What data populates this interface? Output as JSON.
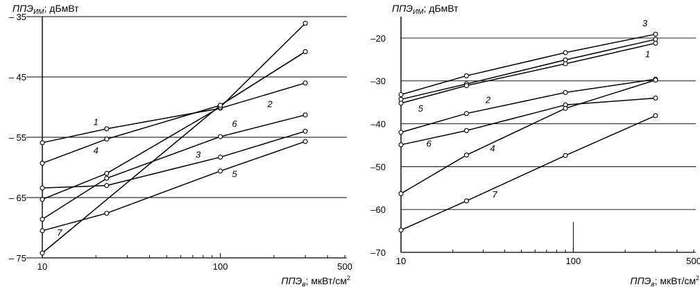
{
  "chart_data": [
    {
      "type": "line",
      "ylabel": "ППЭ",
      "ylabel_sub": "ИМ",
      "ylabel_unit": "; дБмВт",
      "xlabel": "ППЭ",
      "xlabel_sub": "в",
      "xlabel_unit": "; мкВт/см",
      "xlabel_sup": "2",
      "xscale": "log",
      "xlim": [
        10,
        500
      ],
      "ylim": [
        -75,
        -35
      ],
      "xticks": [
        {
          "v": 10,
          "t": "10"
        },
        {
          "v": 100,
          "t": "100"
        },
        {
          "v": 500,
          "t": "500"
        }
      ],
      "yticks": [
        {
          "v": -35,
          "t": "– 35"
        },
        {
          "v": -45,
          "t": "– 45"
        },
        {
          "v": -55,
          "t": "– 55"
        },
        {
          "v": -65,
          "t": "– 65"
        },
        {
          "v": -75,
          "t": "– 75"
        }
      ],
      "grid": "horizontal",
      "series": [
        {
          "label": "1",
          "label_at": [
            20,
            -53
          ],
          "x": [
            10,
            23,
            100,
            300
          ],
          "y": [
            -55.9,
            -53.6,
            -50.2,
            -46.0
          ]
        },
        {
          "label": "2",
          "label_at": [
            190,
            -50
          ],
          "x": [
            10,
            23,
            100,
            300
          ],
          "y": [
            -59.3,
            -55.3,
            -49.7,
            -40.8
          ]
        },
        {
          "label": "3",
          "label_at": [
            75,
            -58.4
          ],
          "x": [
            10,
            23,
            100,
            300
          ],
          "y": [
            -63.4,
            -63.0,
            -58.3,
            -54.0
          ]
        },
        {
          "label": "4",
          "label_at": [
            20,
            -57.7
          ],
          "x": [
            10,
            23,
            100,
            300
          ],
          "y": [
            -65.3,
            -61.0,
            -50.0,
            -36.1
          ]
        },
        {
          "label": "5",
          "label_at": [
            120,
            -61.6
          ],
          "x": [
            10,
            23,
            100,
            300
          ],
          "y": [
            -70.5,
            -67.6,
            -60.6,
            -55.7
          ]
        },
        {
          "label": "6",
          "label_at": [
            120,
            -53.3
          ],
          "x": [
            10,
            23,
            100,
            300
          ],
          "y": [
            -68.6,
            -61.8,
            -54.9,
            -51.3
          ]
        },
        {
          "label": "7",
          "label_at": [
            12.5,
            -71.3
          ],
          "x": [
            10,
            100,
            300
          ],
          "y": [
            -74.2,
            -49.7,
            -40.8
          ]
        }
      ]
    },
    {
      "type": "line",
      "ylabel": "ППЭ",
      "ylabel_sub": "ИМ",
      "ylabel_unit": "; дБмВт",
      "xlabel": "ППЭ",
      "xlabel_sub": "в",
      "xlabel_unit": "; мкВт/см",
      "xlabel_sup": "2",
      "xscale": "log",
      "xlim": [
        10,
        500
      ],
      "ylim": [
        -70,
        -15
      ],
      "xticks": [
        {
          "v": 10,
          "t": "10"
        },
        {
          "v": 100,
          "t": "100"
        },
        {
          "v": 500,
          "t": "500"
        }
      ],
      "yticks": [
        {
          "v": -20,
          "t": "–20"
        },
        {
          "v": -30,
          "t": "–30"
        },
        {
          "v": -40,
          "t": "–40"
        },
        {
          "v": -50,
          "t": "–50"
        },
        {
          "v": -60,
          "t": "–60"
        },
        {
          "v": -70,
          "t": "–70"
        }
      ],
      "grid": "horizontal",
      "series": [
        {
          "label": "3",
          "label_at": [
            260,
            -17.3
          ],
          "x": [
            10,
            24,
            90,
            300
          ],
          "y": [
            -33.2,
            -28.8,
            -23.4,
            -19.1
          ]
        },
        {
          "label": "1",
          "label_at": [
            270,
            -24.5
          ],
          "x": [
            10,
            24,
            90,
            300
          ],
          "y": [
            -34.3,
            -30.7,
            -25.1,
            -20.3
          ]
        },
        {
          "label": "5",
          "label_at": [
            13,
            -37.2
          ],
          "x": [
            10,
            24,
            90,
            300
          ],
          "y": [
            -35.2,
            -31.1,
            -26.0,
            -21.2
          ]
        },
        {
          "label": "2",
          "label_at": [
            32,
            -35.1
          ],
          "x": [
            10,
            24,
            90,
            300
          ],
          "y": [
            -42.0,
            -37.6,
            -32.7,
            -29.6
          ]
        },
        {
          "label": "6",
          "label_at": [
            14.5,
            -45.3
          ],
          "x": [
            10,
            24,
            90,
            300
          ],
          "y": [
            -44.9,
            -41.6,
            -35.6,
            -34.0
          ]
        },
        {
          "label": "4",
          "label_at": [
            34,
            -46.5
          ],
          "x": [
            10,
            24,
            90,
            300
          ],
          "y": [
            -56.3,
            -47.3,
            -36.4,
            -29.8
          ]
        },
        {
          "label": "7",
          "label_at": [
            35,
            -57.2
          ],
          "x": [
            10,
            24,
            90,
            300
          ],
          "y": [
            -64.8,
            -58.0,
            -47.4,
            -38.1
          ]
        }
      ]
    }
  ]
}
